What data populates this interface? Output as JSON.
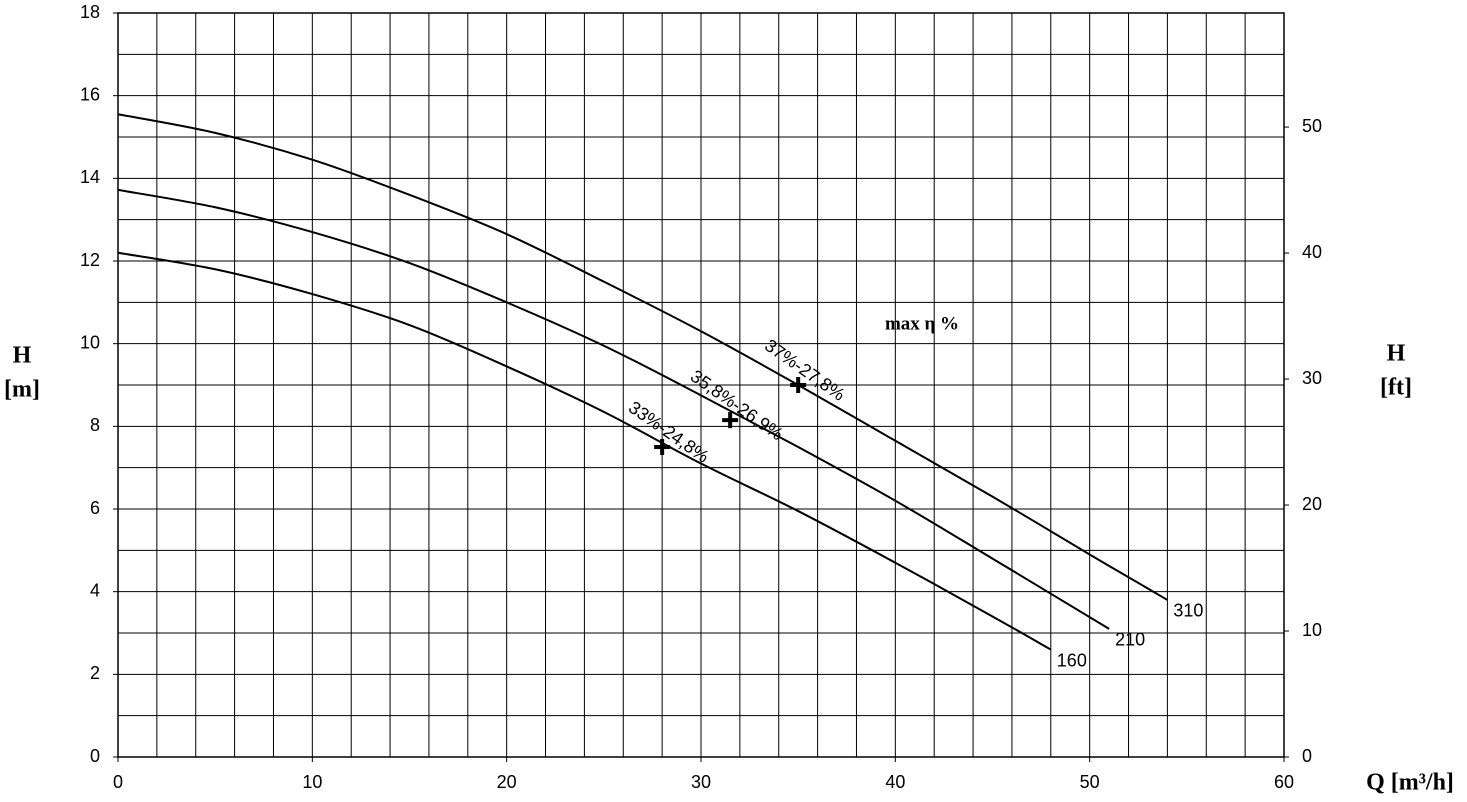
{
  "chart_data": {
    "type": "line",
    "x_label": "Q [m³/h]",
    "y_label": [
      "H",
      "[m]"
    ],
    "y2_label": [
      "H",
      "[ft]"
    ],
    "annotation": "max η %",
    "xlim": [
      0,
      60
    ],
    "xticks": [
      0,
      10,
      20,
      30,
      40,
      50,
      60
    ],
    "ylim": [
      0,
      18
    ],
    "yticks": [
      0,
      2,
      4,
      6,
      8,
      10,
      12,
      14,
      16,
      18
    ],
    "y2lim": [
      0,
      59.055
    ],
    "y2ticks": [
      0,
      10,
      20,
      30,
      40,
      50
    ],
    "x_grid": [
      0,
      2,
      4,
      6,
      8,
      10,
      12,
      14,
      16,
      18,
      20,
      22,
      24,
      26,
      28,
      30,
      32,
      34,
      36,
      38,
      40,
      42,
      44,
      46,
      48,
      50,
      52,
      54,
      56,
      58,
      60
    ],
    "y_grid": [
      0,
      1,
      2,
      3,
      4,
      5,
      6,
      7,
      8,
      9,
      10,
      11,
      12,
      13,
      14,
      15,
      16,
      17,
      18
    ],
    "grid": true,
    "series": [
      {
        "name": "310",
        "color": "#000000",
        "x": [
          0,
          5,
          10,
          15,
          20,
          25,
          30,
          35,
          40,
          45,
          50,
          54
        ],
        "values": [
          15.55,
          15.1,
          14.45,
          13.6,
          12.65,
          11.5,
          10.3,
          9.0,
          7.65,
          6.3,
          4.9,
          3.8
        ]
      },
      {
        "name": "210",
        "color": "#000000",
        "x": [
          0,
          5,
          10,
          15,
          20,
          25,
          30,
          35,
          40,
          45,
          51
        ],
        "values": [
          13.72,
          13.3,
          12.7,
          11.95,
          11.0,
          9.95,
          8.75,
          7.5,
          6.2,
          4.8,
          3.1
        ]
      },
      {
        "name": "160",
        "color": "#000000",
        "x": [
          0,
          5,
          10,
          15,
          20,
          25,
          30,
          35,
          40,
          45,
          48
        ],
        "values": [
          12.2,
          11.8,
          11.2,
          10.45,
          9.45,
          8.35,
          7.1,
          5.95,
          4.7,
          3.4,
          2.6
        ]
      }
    ],
    "max_eta_points": [
      {
        "x": 35,
        "y": 9.0,
        "label": "37%-27,8%"
      },
      {
        "x": 31.5,
        "y": 8.15,
        "label": "35,8%-26,9%"
      },
      {
        "x": 28,
        "y": 7.5,
        "label": "33%-24,8%"
      }
    ]
  }
}
